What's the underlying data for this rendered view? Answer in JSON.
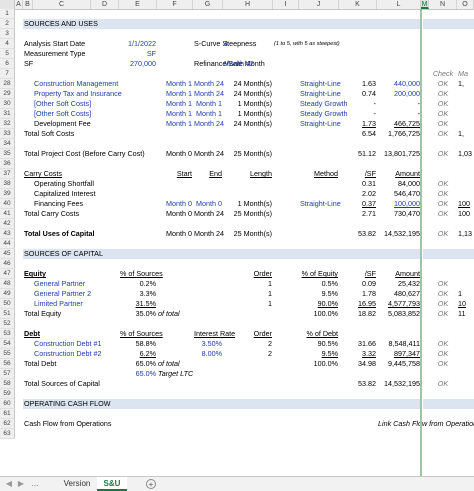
{
  "columns": [
    "A",
    "B",
    "C",
    "D",
    "E",
    "F",
    "G",
    "H",
    "I",
    "J",
    "K",
    "L",
    "M",
    "N",
    "O"
  ],
  "selected_column": "M",
  "rows": [
    {
      "n": "1",
      "cells": []
    },
    {
      "n": "2",
      "band": true,
      "cells": [
        {
          "c": "B",
          "t": "SOURCES AND USES"
        }
      ]
    },
    {
      "n": "3",
      "cells": []
    },
    {
      "n": "4",
      "cells": [
        {
          "c": "B",
          "t": "Analysis Start Date"
        },
        {
          "c": "E",
          "t": "1/1/2022",
          "s": "blue r"
        },
        {
          "c": "G",
          "t": "S-Curve Steepness",
          "s": "r"
        },
        {
          "c": "H",
          "t": "4",
          "s": "blue"
        },
        {
          "c": "I",
          "t": "(1 to 5, with 5 as steepest)",
          "s": "it small"
        }
      ]
    },
    {
      "n": "5",
      "cells": [
        {
          "c": "B",
          "t": "Measurement Type"
        },
        {
          "c": "E",
          "t": "SF",
          "s": "blue r"
        }
      ]
    },
    {
      "n": "6",
      "cells": [
        {
          "c": "B",
          "t": "SF"
        },
        {
          "c": "E",
          "t": "270,000",
          "s": "blue r"
        },
        {
          "c": "G",
          "t": "Refinance/Sale Month",
          "s": "r"
        },
        {
          "c": "H",
          "t": "Month 42",
          "s": "blue"
        }
      ]
    },
    {
      "n": "7",
      "cells": [
        {
          "c": "N",
          "t": "Check",
          "s": "grey it ctr"
        },
        {
          "c": "O",
          "t": "Ma",
          "s": "grey it"
        }
      ]
    },
    {
      "n": "28",
      "cells": [
        {
          "c": "C",
          "t": "Construction Management",
          "s": "blue"
        },
        {
          "c": "F",
          "t": "Month 1",
          "s": "blue r"
        },
        {
          "c": "G",
          "t": "Month 24",
          "s": "blue"
        },
        {
          "c": "H",
          "t": "24 Month(s)",
          "s": "r"
        },
        {
          "c": "J",
          "t": "Straight-Line",
          "s": "blue r"
        },
        {
          "c": "K",
          "t": "1.63",
          "s": "r"
        },
        {
          "c": "L",
          "t": "440,000",
          "s": "blue r"
        },
        {
          "c": "N",
          "t": "OK",
          "s": "grey it ctr"
        },
        {
          "c": "O",
          "t": "1,"
        }
      ]
    },
    {
      "n": "29",
      "cells": [
        {
          "c": "C",
          "t": "Property Tax and Insurance",
          "s": "blue"
        },
        {
          "c": "F",
          "t": "Month 1",
          "s": "blue r"
        },
        {
          "c": "G",
          "t": "Month 24",
          "s": "blue"
        },
        {
          "c": "H",
          "t": "24 Month(s)",
          "s": "r"
        },
        {
          "c": "J",
          "t": "Straight-Line",
          "s": "blue r"
        },
        {
          "c": "K",
          "t": "0.74",
          "s": "r"
        },
        {
          "c": "L",
          "t": "200,000",
          "s": "blue r"
        },
        {
          "c": "N",
          "t": "OK",
          "s": "grey it ctr"
        }
      ]
    },
    {
      "n": "30",
      "cells": [
        {
          "c": "C",
          "t": "[Other Soft Costs]",
          "s": "blue"
        },
        {
          "c": "F",
          "t": "Month 1",
          "s": "blue r"
        },
        {
          "c": "G",
          "t": "Month 1",
          "s": "blue r"
        },
        {
          "c": "H",
          "t": "1 Month(s)",
          "s": "r"
        },
        {
          "c": "J",
          "t": "Steady Growth",
          "s": "blue r"
        },
        {
          "c": "K",
          "t": "-",
          "s": "r"
        },
        {
          "c": "L",
          "t": "-",
          "s": "r"
        },
        {
          "c": "N",
          "t": "OK",
          "s": "grey it ctr"
        }
      ]
    },
    {
      "n": "31",
      "cells": [
        {
          "c": "C",
          "t": "[Other Soft Costs]",
          "s": "blue"
        },
        {
          "c": "F",
          "t": "Month 1",
          "s": "blue r"
        },
        {
          "c": "G",
          "t": "Month 1",
          "s": "blue r"
        },
        {
          "c": "H",
          "t": "1 Month(s)",
          "s": "r"
        },
        {
          "c": "J",
          "t": "Steady Growth",
          "s": "blue r"
        },
        {
          "c": "K",
          "t": "-",
          "s": "r"
        },
        {
          "c": "L",
          "t": "-",
          "s": "r"
        },
        {
          "c": "N",
          "t": "OK",
          "s": "grey it ctr"
        }
      ]
    },
    {
      "n": "32",
      "cells": [
        {
          "c": "C",
          "t": "Development Fee"
        },
        {
          "c": "F",
          "t": "Month 1",
          "s": "blue r"
        },
        {
          "c": "G",
          "t": "Month 24",
          "s": "blue"
        },
        {
          "c": "H",
          "t": "24 Month(s)",
          "s": "r"
        },
        {
          "c": "J",
          "t": "Straight-Line",
          "s": "blue r"
        },
        {
          "c": "K",
          "t": "1.73",
          "s": "r u"
        },
        {
          "c": "L",
          "t": "466,725",
          "s": "r u"
        },
        {
          "c": "N",
          "t": "OK",
          "s": "grey it ctr"
        }
      ]
    },
    {
      "n": "33",
      "cells": [
        {
          "c": "B",
          "t": "Total Soft Costs"
        },
        {
          "c": "K",
          "t": "6.54",
          "s": "r"
        },
        {
          "c": "L",
          "t": "1,766,725",
          "s": "r"
        },
        {
          "c": "N",
          "t": "OK",
          "s": "grey it ctr"
        },
        {
          "c": "O",
          "t": "1,"
        }
      ]
    },
    {
      "n": "34",
      "cells": []
    },
    {
      "n": "35",
      "cells": [
        {
          "c": "B",
          "t": "Total Project Cost (Before Carry Cost)"
        },
        {
          "c": "F",
          "t": "Month 0",
          "s": "r"
        },
        {
          "c": "G",
          "t": "Month 24",
          "s": ""
        },
        {
          "c": "H",
          "t": "25 Month(s)",
          "s": "r"
        },
        {
          "c": "K",
          "t": "51.12",
          "s": "r"
        },
        {
          "c": "L",
          "t": "13,801,725",
          "s": "r"
        },
        {
          "c": "N",
          "t": "OK",
          "s": "grey it ctr"
        },
        {
          "c": "O",
          "t": "1,03"
        }
      ]
    },
    {
      "n": "36",
      "cells": []
    },
    {
      "n": "37",
      "cells": [
        {
          "c": "B",
          "t": "Carry Costs",
          "s": "u"
        },
        {
          "c": "F",
          "t": "Start",
          "s": "r u"
        },
        {
          "c": "G",
          "t": "End",
          "s": "r u"
        },
        {
          "c": "H",
          "t": "Length",
          "s": "r u"
        },
        {
          "c": "J",
          "t": "Method",
          "s": "r u"
        },
        {
          "c": "K",
          "t": "/SF",
          "s": "r u"
        },
        {
          "c": "L",
          "t": "Amount",
          "s": "r u"
        }
      ]
    },
    {
      "n": "38",
      "cells": [
        {
          "c": "C",
          "t": "Operating Shortfall"
        },
        {
          "c": "K",
          "t": "0.31",
          "s": "r"
        },
        {
          "c": "L",
          "t": "84,000",
          "s": "r"
        },
        {
          "c": "N",
          "t": "OK",
          "s": "grey it ctr"
        }
      ]
    },
    {
      "n": "39",
      "cells": [
        {
          "c": "C",
          "t": "Capitalized Interest"
        },
        {
          "c": "K",
          "t": "2.02",
          "s": "r"
        },
        {
          "c": "L",
          "t": "546,470",
          "s": "r"
        },
        {
          "c": "N",
          "t": "OK",
          "s": "grey it ctr"
        }
      ]
    },
    {
      "n": "40",
      "cells": [
        {
          "c": "C",
          "t": "Financing Fees"
        },
        {
          "c": "F",
          "t": "Month 0",
          "s": "blue r"
        },
        {
          "c": "G",
          "t": "Month 0",
          "s": "blue r"
        },
        {
          "c": "H",
          "t": "1 Month(s)",
          "s": "r"
        },
        {
          "c": "J",
          "t": "Straight-Line",
          "s": "blue r"
        },
        {
          "c": "K",
          "t": "0.37",
          "s": "r u"
        },
        {
          "c": "L",
          "t": "100,000",
          "s": "blue r u"
        },
        {
          "c": "N",
          "t": "OK",
          "s": "grey it ctr"
        },
        {
          "c": "O",
          "t": "100",
          "s": "u"
        }
      ]
    },
    {
      "n": "41",
      "cells": [
        {
          "c": "B",
          "t": "Total Carry Costs"
        },
        {
          "c": "F",
          "t": "Month 0",
          "s": "r"
        },
        {
          "c": "G",
          "t": "Month 24",
          "s": ""
        },
        {
          "c": "H",
          "t": "25 Month(s)",
          "s": "r"
        },
        {
          "c": "K",
          "t": "2.71",
          "s": "r"
        },
        {
          "c": "L",
          "t": "730,470",
          "s": "r"
        },
        {
          "c": "N",
          "t": "OK",
          "s": "grey it ctr"
        },
        {
          "c": "O",
          "t": "100"
        }
      ]
    },
    {
      "n": "42",
      "cells": []
    },
    {
      "n": "43",
      "cells": [
        {
          "c": "B",
          "t": "Total Uses of Capital",
          "s": "b"
        },
        {
          "c": "F",
          "t": "Month 0",
          "s": "r"
        },
        {
          "c": "G",
          "t": "Month 24",
          "s": ""
        },
        {
          "c": "H",
          "t": "25 Month(s)",
          "s": "r"
        },
        {
          "c": "K",
          "t": "53.82",
          "s": "r"
        },
        {
          "c": "L",
          "t": "14,532,195",
          "s": "r"
        },
        {
          "c": "N",
          "t": "OK",
          "s": "grey it ctr"
        },
        {
          "c": "O",
          "t": "1,13"
        }
      ]
    },
    {
      "n": "44",
      "cells": []
    },
    {
      "n": "45",
      "band": true,
      "cells": [
        {
          "c": "B",
          "t": "SOURCES OF CAPITAL"
        }
      ]
    },
    {
      "n": "46",
      "cells": []
    },
    {
      "n": "47",
      "cells": [
        {
          "c": "B",
          "t": "Equity",
          "s": "b u"
        },
        {
          "c": "E",
          "t": "% of Sources",
          "s": "r u"
        },
        {
          "c": "H",
          "t": "Order",
          "s": "r u"
        },
        {
          "c": "J",
          "t": "% of Equity",
          "s": "r u"
        },
        {
          "c": "K",
          "t": "/SF",
          "s": "r u"
        },
        {
          "c": "L",
          "t": "Amount",
          "s": "r u"
        }
      ]
    },
    {
      "n": "48",
      "cells": [
        {
          "c": "C",
          "t": "General Partner",
          "s": "blue"
        },
        {
          "c": "E",
          "t": "0.2%",
          "s": "r"
        },
        {
          "c": "H",
          "t": "1",
          "s": "r"
        },
        {
          "c": "J",
          "t": "0.5%",
          "s": "r"
        },
        {
          "c": "K",
          "t": "0.09",
          "s": "r"
        },
        {
          "c": "L",
          "t": "25,432",
          "s": "r"
        },
        {
          "c": "N",
          "t": "OK",
          "s": "grey it ctr"
        }
      ]
    },
    {
      "n": "49",
      "cells": [
        {
          "c": "C",
          "t": "General Partner 2",
          "s": "blue"
        },
        {
          "c": "E",
          "t": "3.3%",
          "s": "r"
        },
        {
          "c": "H",
          "t": "1",
          "s": "r"
        },
        {
          "c": "J",
          "t": "9.5%",
          "s": "r"
        },
        {
          "c": "K",
          "t": "1.78",
          "s": "r"
        },
        {
          "c": "L",
          "t": "480,627",
          "s": "r"
        },
        {
          "c": "N",
          "t": "OK",
          "s": "grey it ctr"
        },
        {
          "c": "O",
          "t": "1"
        }
      ]
    },
    {
      "n": "50",
      "cells": [
        {
          "c": "C",
          "t": "Limited Partner",
          "s": "blue"
        },
        {
          "c": "E",
          "t": "31.5%",
          "s": "r u"
        },
        {
          "c": "H",
          "t": "1",
          "s": "r"
        },
        {
          "c": "J",
          "t": "90.0%",
          "s": "r u"
        },
        {
          "c": "K",
          "t": "16.95",
          "s": "r u"
        },
        {
          "c": "L",
          "t": "4,577,793",
          "s": "r u"
        },
        {
          "c": "N",
          "t": "OK",
          "s": "grey it ctr"
        },
        {
          "c": "O",
          "t": "10",
          "s": "u"
        }
      ]
    },
    {
      "n": "51",
      "cells": [
        {
          "c": "B",
          "t": "Total Equity"
        },
        {
          "c": "E",
          "t": "35.0%",
          "s": "r"
        },
        {
          "c": "F",
          "t": "of total",
          "s": "it"
        },
        {
          "c": "J",
          "t": "100.0%",
          "s": "r"
        },
        {
          "c": "K",
          "t": "18.82",
          "s": "r"
        },
        {
          "c": "L",
          "t": "5,083,852",
          "s": "r"
        },
        {
          "c": "N",
          "t": "OK",
          "s": "grey it ctr"
        },
        {
          "c": "O",
          "t": "11"
        }
      ]
    },
    {
      "n": "52",
      "cells": []
    },
    {
      "n": "53",
      "cells": [
        {
          "c": "B",
          "t": "Debt",
          "s": "b u"
        },
        {
          "c": "E",
          "t": "% of Sources",
          "s": "r u"
        },
        {
          "c": "G",
          "t": "Interest Rate",
          "s": "r u"
        },
        {
          "c": "H",
          "t": "Order",
          "s": "r u"
        },
        {
          "c": "J",
          "t": "% of Debt",
          "s": "r u"
        }
      ]
    },
    {
      "n": "54",
      "cells": [
        {
          "c": "C",
          "t": "Construction Debt #1",
          "s": "blue"
        },
        {
          "c": "E",
          "t": "58.8%",
          "s": "r"
        },
        {
          "c": "G",
          "t": "3.50%",
          "s": "blue r"
        },
        {
          "c": "H",
          "t": "2",
          "s": "r"
        },
        {
          "c": "J",
          "t": "90.5%",
          "s": "r"
        },
        {
          "c": "K",
          "t": "31.66",
          "s": "r"
        },
        {
          "c": "L",
          "t": "8,548,411",
          "s": "r"
        },
        {
          "c": "N",
          "t": "OK",
          "s": "grey it ctr"
        }
      ]
    },
    {
      "n": "55",
      "cells": [
        {
          "c": "C",
          "t": "Construction Debt #2",
          "s": "blue"
        },
        {
          "c": "E",
          "t": "6.2%",
          "s": "r u"
        },
        {
          "c": "G",
          "t": "8.00%",
          "s": "blue r"
        },
        {
          "c": "H",
          "t": "2",
          "s": "r"
        },
        {
          "c": "J",
          "t": "9.5%",
          "s": "r u"
        },
        {
          "c": "K",
          "t": "3.32",
          "s": "r u"
        },
        {
          "c": "L",
          "t": "897,347",
          "s": "r u"
        },
        {
          "c": "N",
          "t": "OK",
          "s": "grey it ctr"
        }
      ]
    },
    {
      "n": "56",
      "cells": [
        {
          "c": "B",
          "t": "Total Debt"
        },
        {
          "c": "E",
          "t": "65.0%",
          "s": "r"
        },
        {
          "c": "F",
          "t": "of total",
          "s": "it"
        },
        {
          "c": "J",
          "t": "100.0%",
          "s": "r"
        },
        {
          "c": "K",
          "t": "34.98",
          "s": "r"
        },
        {
          "c": "L",
          "t": "9,445,758",
          "s": "r"
        },
        {
          "c": "N",
          "t": "OK",
          "s": "grey it ctr"
        }
      ]
    },
    {
      "n": "57",
      "cells": [
        {
          "c": "E",
          "t": "65.0%",
          "s": "blue r"
        },
        {
          "c": "F",
          "t": "Target LTC",
          "s": "it"
        }
      ]
    },
    {
      "n": "58",
      "cells": [
        {
          "c": "B",
          "t": "Total Sources of Capital"
        },
        {
          "c": "K",
          "t": "53.82",
          "s": "r"
        },
        {
          "c": "L",
          "t": "14,532,195",
          "s": "r"
        },
        {
          "c": "N",
          "t": "OK",
          "s": "grey it ctr"
        }
      ]
    },
    {
      "n": "59",
      "cells": []
    },
    {
      "n": "60",
      "band": true,
      "cells": [
        {
          "c": "B",
          "t": "OPERATING CASH FLOW"
        }
      ]
    },
    {
      "n": "61",
      "cells": []
    },
    {
      "n": "62",
      "cells": [
        {
          "c": "B",
          "t": "Cash Flow from Operations"
        },
        {
          "c": "L",
          "t": "Link Cash Flow from Operations from Model --->",
          "s": "it r"
        }
      ]
    },
    {
      "n": "63",
      "cells": []
    }
  ],
  "sheet_tabs": {
    "items": [
      "Version",
      "S&U"
    ],
    "active": "S&U",
    "ellipsis": "...",
    "nav_prev": "◀",
    "nav_next": "▶",
    "add": "+"
  }
}
